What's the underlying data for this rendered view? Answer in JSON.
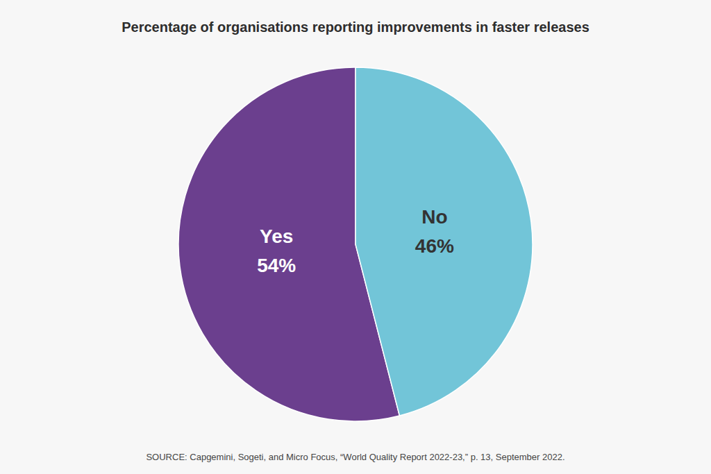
{
  "chart_data": {
    "type": "pie",
    "title": "Percentage of organisations reporting improvements in faster releases",
    "source": "SOURCE: Capgemini, Sogeti, and Micro Focus, “World Quality Report 2022-23,” p. 13, September 2022.",
    "categories": [
      "Yes",
      "No"
    ],
    "values": [
      54,
      46
    ],
    "value_labels": [
      "54%",
      "46%"
    ],
    "colors": [
      "#6B3F8E",
      "#72C5D8"
    ],
    "data_labels": true
  }
}
